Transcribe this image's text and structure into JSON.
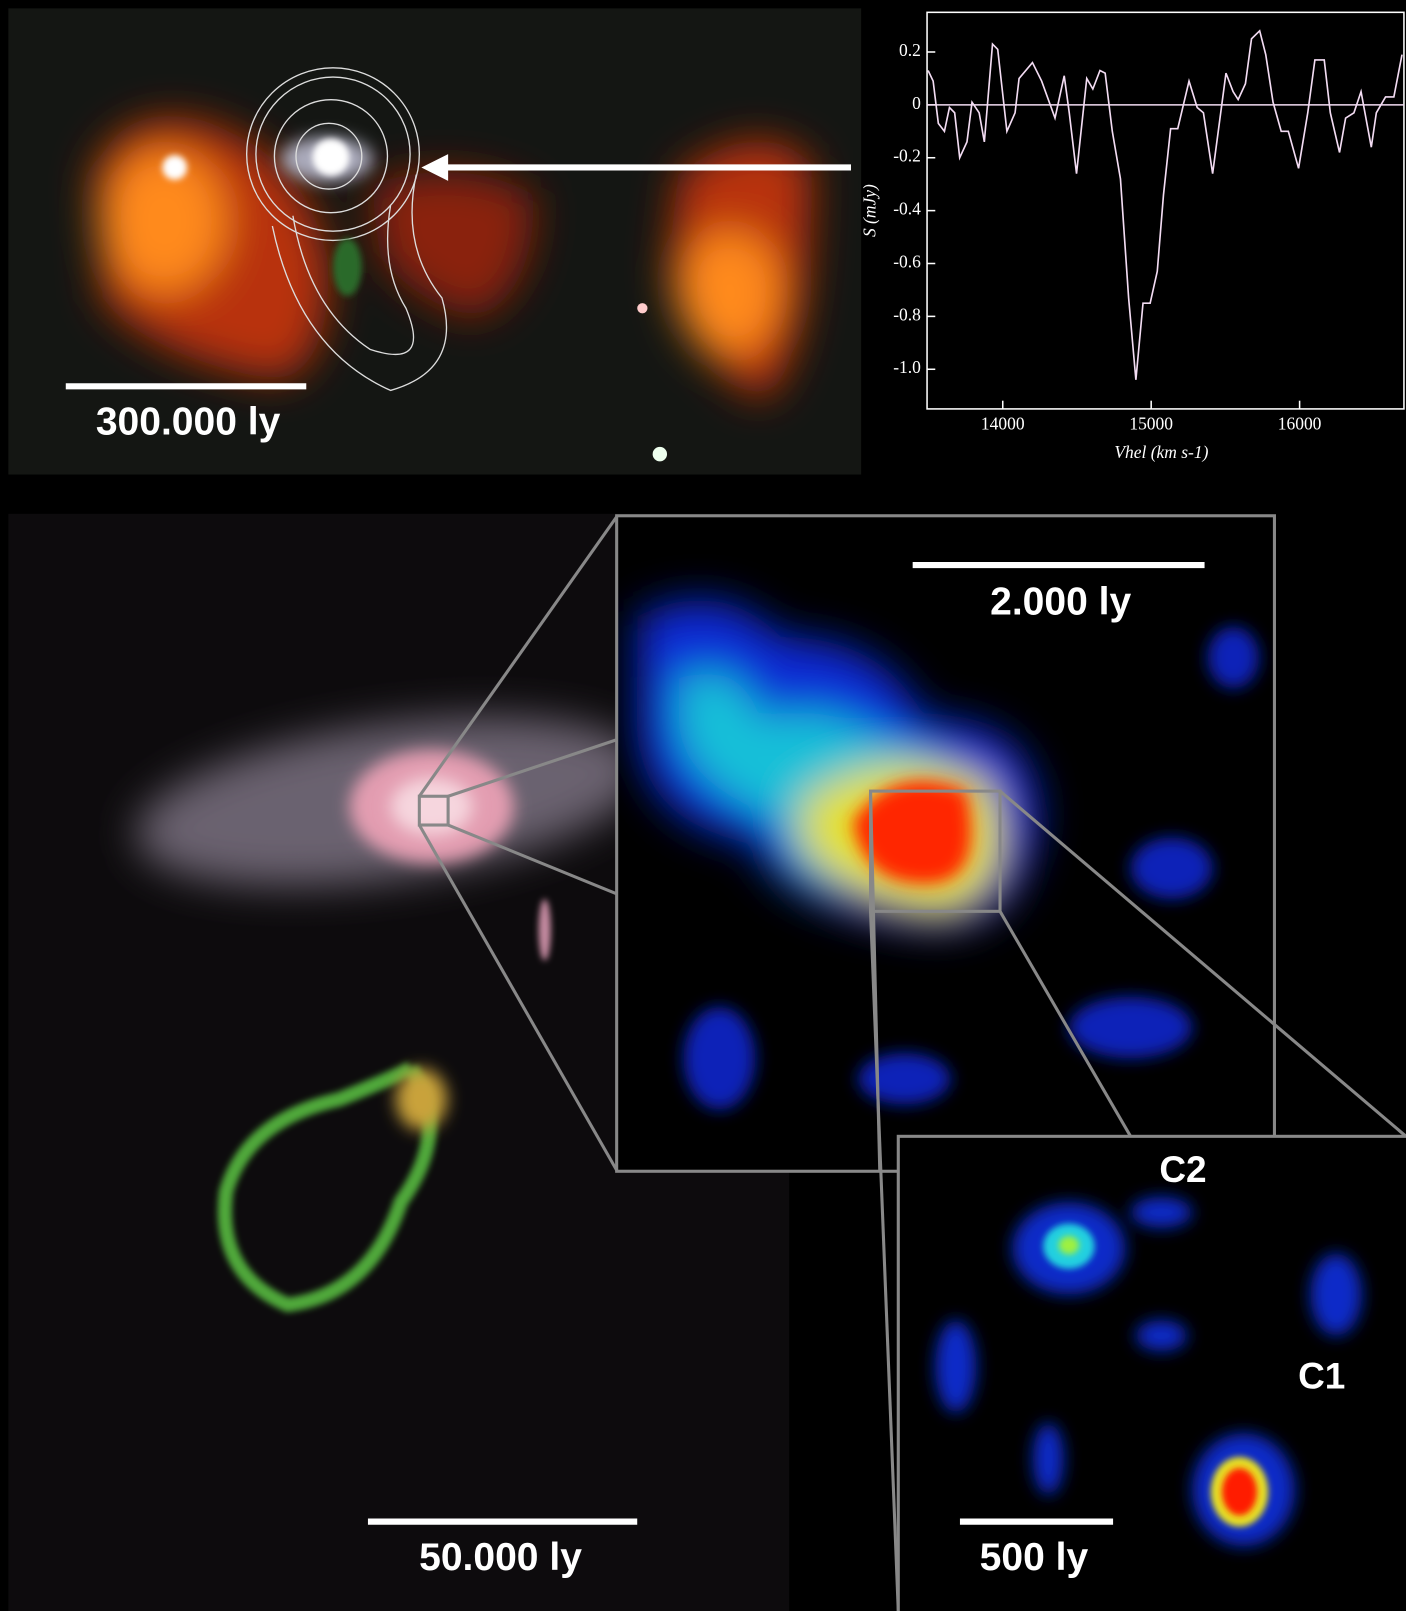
{
  "chart_data": {
    "type": "line",
    "x_label": "Vhel (km s-1)",
    "y_label": "S (mJy)",
    "x": [
      13497,
      13531,
      13566,
      13607,
      13641,
      13676,
      13710,
      13759,
      13793,
      13841,
      13876,
      13931,
      13966,
      14028,
      14083,
      14110,
      14200,
      14262,
      14352,
      14414,
      14448,
      14497,
      14566,
      14607,
      14655,
      14690,
      14738,
      14793,
      14848,
      14897,
      14945,
      14993,
      15041,
      15083,
      15131,
      15179,
      15255,
      15310,
      15352,
      15414,
      15504,
      15552,
      15586,
      15635,
      15676,
      15731,
      15772,
      15821,
      15876,
      15924,
      15993,
      16055,
      16103,
      16166,
      16207,
      16269,
      16310,
      16366,
      16414,
      16483,
      16517,
      16579,
      16635,
      16690
    ],
    "values": [
      0.13,
      0.09,
      -0.07,
      -0.1,
      -0.01,
      -0.03,
      -0.2,
      -0.14,
      0.01,
      -0.03,
      -0.14,
      0.23,
      0.21,
      -0.1,
      -0.03,
      0.1,
      0.16,
      0.09,
      -0.05,
      0.11,
      -0.03,
      -0.26,
      0.1,
      0.06,
      0.13,
      0.12,
      -0.1,
      -0.28,
      -0.73,
      -1.04,
      -0.75,
      -0.75,
      -0.63,
      -0.34,
      -0.09,
      -0.09,
      0.09,
      -0.01,
      -0.03,
      -0.26,
      0.12,
      0.05,
      0.02,
      0.08,
      0.25,
      0.28,
      0.19,
      0.01,
      -0.1,
      -0.1,
      -0.24,
      -0.03,
      0.17,
      0.17,
      -0.03,
      -0.18,
      -0.05,
      -0.03,
      0.05,
      -0.16,
      -0.03,
      0.03,
      0.03,
      0.19
    ],
    "color": "#f3dcf3",
    "xlim": [
      13490,
      16703
    ],
    "ylim": [
      -1.15,
      0.35
    ],
    "xticks": [
      14000,
      15000,
      16000
    ],
    "yticks": [
      0.2,
      0,
      -0.2,
      -0.4,
      -0.6,
      -0.8,
      {
        "value": -1,
        "label": "-1.0"
      }
    ],
    "zero_line": true
  },
  "labels": {
    "top_scale": "300.000 ly",
    "inset_scale": "2.000 ly",
    "main_scale": "50.000 ly",
    "zoom_scale": "500 ly",
    "c2": "C2",
    "c1": "C1"
  }
}
